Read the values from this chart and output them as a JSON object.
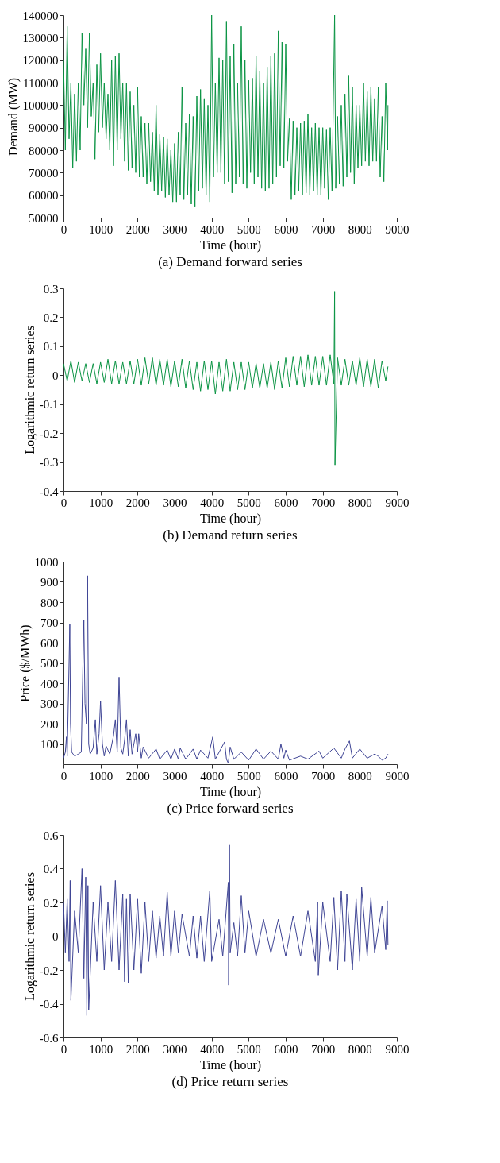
{
  "chart_data": [
    {
      "type": "line",
      "title": "(a) Demand forward series",
      "xlabel": "Time (hour)",
      "ylabel": "Demand (MW)",
      "xlim": [
        0,
        9000
      ],
      "xticks": [
        0,
        1000,
        2000,
        3000,
        4000,
        5000,
        6000,
        7000,
        8000,
        9000
      ],
      "ylim": [
        50000,
        140000
      ],
      "yticks": [
        50000,
        60000,
        70000,
        80000,
        90000,
        100000,
        110000,
        120000,
        130000,
        140000
      ],
      "grid": false,
      "x": [
        0,
        50,
        100,
        150,
        200,
        250,
        300,
        350,
        400,
        450,
        500,
        550,
        600,
        650,
        700,
        750,
        800,
        850,
        900,
        950,
        1000,
        1050,
        1100,
        1150,
        1200,
        1250,
        1300,
        1350,
        1400,
        1450,
        1500,
        1550,
        1600,
        1650,
        1700,
        1750,
        1800,
        1850,
        1900,
        1950,
        2000,
        2050,
        2100,
        2150,
        2200,
        2250,
        2300,
        2350,
        2400,
        2450,
        2500,
        2550,
        2600,
        2650,
        2700,
        2750,
        2800,
        2850,
        2900,
        2950,
        3000,
        3050,
        3100,
        3150,
        3200,
        3250,
        3300,
        3350,
        3400,
        3450,
        3500,
        3550,
        3600,
        3650,
        3700,
        3750,
        3800,
        3850,
        3900,
        3950,
        4000,
        4050,
        4100,
        4150,
        4200,
        4250,
        4300,
        4350,
        4400,
        4450,
        4500,
        4550,
        4600,
        4650,
        4700,
        4750,
        4800,
        4850,
        4900,
        4950,
        5000,
        5050,
        5100,
        5150,
        5200,
        5250,
        5300,
        5350,
        5400,
        5450,
        5500,
        5550,
        5600,
        5650,
        5700,
        5750,
        5800,
        5850,
        5900,
        5950,
        6000,
        6050,
        6100,
        6150,
        6200,
        6250,
        6300,
        6350,
        6400,
        6450,
        6500,
        6550,
        6600,
        6650,
        6700,
        6750,
        6800,
        6850,
        6900,
        6950,
        7000,
        7050,
        7100,
        7150,
        7200,
        7250,
        7320,
        7350,
        7400,
        7450,
        7500,
        7550,
        7600,
        7650,
        7700,
        7750,
        7800,
        7850,
        7900,
        7950,
        8000,
        8050,
        8100,
        8150,
        8200,
        8250,
        8300,
        8350,
        8400,
        8450,
        8500,
        8550,
        8600,
        8650,
        8700,
        8750,
        8760
      ],
      "series": [
        {
          "color": "#0b9444",
          "values": [
            120000,
            80000,
            135000,
            85000,
            110000,
            72000,
            105000,
            75000,
            110000,
            80000,
            132000,
            100000,
            125000,
            90000,
            132000,
            95000,
            110000,
            76000,
            118000,
            88000,
            123000,
            90000,
            110000,
            85000,
            105000,
            80000,
            120000,
            73000,
            122000,
            80000,
            123000,
            85000,
            110000,
            75000,
            110000,
            71000,
            106000,
            72000,
            100000,
            70000,
            108000,
            68000,
            95000,
            68000,
            92000,
            65000,
            92000,
            66000,
            88000,
            62000,
            100000,
            60000,
            87000,
            62000,
            86000,
            59000,
            85000,
            60000,
            80000,
            57000,
            83000,
            57000,
            88000,
            60000,
            108000,
            58000,
            92000,
            60000,
            96000,
            56000,
            95000,
            55000,
            104000,
            62000,
            107000,
            63000,
            103000,
            60000,
            100000,
            57000,
            140000,
            68000,
            110000,
            70000,
            121000,
            70000,
            120000,
            65000,
            137000,
            66000,
            122000,
            61000,
            127000,
            65000,
            110000,
            68000,
            135000,
            65000,
            120000,
            63000,
            111000,
            70000,
            112000,
            65000,
            122000,
            68000,
            115000,
            63000,
            110000,
            62000,
            117000,
            63000,
            122000,
            65000,
            123000,
            68000,
            133000,
            73000,
            128000,
            72000,
            127000,
            75000,
            94000,
            58000,
            93000,
            60000,
            90000,
            62000,
            92000,
            60000,
            93000,
            61000,
            96000,
            60000,
            90000,
            62000,
            92000,
            60000,
            90000,
            60000,
            90000,
            63000,
            89000,
            58000,
            90000,
            62000,
            140000,
            63000,
            95000,
            65000,
            100000,
            64000,
            105000,
            68000,
            113000,
            70000,
            108000,
            65000,
            100000,
            72000,
            100000,
            73000,
            110000,
            75000,
            106000,
            73000,
            108000,
            75000,
            103000,
            75000,
            108000,
            68000,
            95000,
            66000,
            110000,
            80000,
            100000
          ]
        }
      ]
    },
    {
      "type": "line",
      "title": "(b) Demand return series",
      "xlabel": "Time (hour)",
      "ylabel": "Logarithmic return series",
      "xlim": [
        0,
        9000
      ],
      "xticks": [
        0,
        1000,
        2000,
        3000,
        4000,
        5000,
        6000,
        7000,
        8000,
        9000
      ],
      "ylim": [
        -0.4,
        0.3
      ],
      "yticks": [
        -0.4,
        -0.3,
        -0.2,
        -0.1,
        0,
        0.1,
        0.2,
        0.3
      ],
      "grid": false,
      "x": [
        0,
        100,
        200,
        300,
        400,
        500,
        600,
        700,
        800,
        900,
        1000,
        1100,
        1200,
        1300,
        1400,
        1500,
        1600,
        1700,
        1800,
        1900,
        2000,
        2100,
        2200,
        2300,
        2400,
        2500,
        2600,
        2700,
        2800,
        2900,
        3000,
        3100,
        3200,
        3300,
        3400,
        3500,
        3600,
        3700,
        3800,
        3900,
        4000,
        4100,
        4200,
        4300,
        4400,
        4500,
        4600,
        4700,
        4800,
        4900,
        5000,
        5100,
        5200,
        5300,
        5400,
        5500,
        5600,
        5700,
        5800,
        5900,
        6000,
        6100,
        6200,
        6300,
        6400,
        6500,
        6600,
        6700,
        6800,
        6900,
        7000,
        7100,
        7200,
        7300,
        7320,
        7330,
        7400,
        7500,
        7600,
        7700,
        7800,
        7900,
        8000,
        8100,
        8200,
        8300,
        8400,
        8500,
        8600,
        8700,
        8760
      ],
      "series": [
        {
          "color": "#0b9444",
          "values": [
            0.04,
            -0.02,
            0.05,
            -0.025,
            0.045,
            -0.02,
            0.04,
            -0.025,
            0.04,
            -0.03,
            0.045,
            -0.025,
            0.055,
            -0.03,
            0.05,
            -0.03,
            0.045,
            -0.03,
            0.05,
            -0.03,
            0.055,
            -0.035,
            0.06,
            -0.03,
            0.06,
            -0.035,
            0.055,
            -0.035,
            0.055,
            -0.04,
            0.05,
            -0.04,
            0.055,
            -0.045,
            0.05,
            -0.05,
            0.045,
            -0.055,
            0.05,
            -0.05,
            0.05,
            -0.065,
            0.045,
            -0.055,
            0.055,
            -0.055,
            0.045,
            -0.05,
            0.045,
            -0.05,
            0.045,
            -0.045,
            0.04,
            -0.045,
            0.04,
            -0.045,
            0.045,
            -0.05,
            0.05,
            -0.045,
            0.06,
            -0.04,
            0.065,
            -0.035,
            0.065,
            -0.04,
            0.07,
            -0.035,
            0.065,
            -0.035,
            0.065,
            -0.035,
            0.07,
            -0.03,
            0.29,
            -0.31,
            0.06,
            -0.035,
            0.055,
            -0.035,
            0.05,
            -0.035,
            0.06,
            -0.04,
            0.055,
            -0.04,
            0.055,
            -0.045,
            0.05,
            -0.02,
            0.03
          ]
        }
      ]
    },
    {
      "type": "line",
      "title": "(c) Price forward series",
      "xlabel": "Time (hour)",
      "ylabel": "Price ($/MWh)",
      "xlim": [
        0,
        9000
      ],
      "xticks": [
        0,
        1000,
        2000,
        3000,
        4000,
        5000,
        6000,
        7000,
        8000,
        9000
      ],
      "ylim": [
        0,
        1000
      ],
      "yticks": [
        100,
        200,
        300,
        400,
        500,
        600,
        700,
        800,
        900,
        1000
      ],
      "grid": false,
      "x": [
        0,
        50,
        80,
        100,
        150,
        170,
        190,
        220,
        300,
        400,
        480,
        520,
        550,
        580,
        620,
        650,
        680,
        720,
        800,
        860,
        900,
        960,
        1000,
        1050,
        1100,
        1150,
        1250,
        1350,
        1400,
        1450,
        1500,
        1550,
        1600,
        1650,
        1700,
        1750,
        1800,
        1850,
        1950,
        2000,
        2030,
        2100,
        2150,
        2300,
        2500,
        2600,
        2800,
        2900,
        3000,
        3100,
        3150,
        3300,
        3500,
        3600,
        3700,
        3900,
        4030,
        4100,
        4350,
        4400,
        4450,
        4500,
        4600,
        4800,
        5000,
        5200,
        5400,
        5600,
        5800,
        5870,
        5950,
        6000,
        6100,
        6400,
        6600,
        6900,
        7000,
        7300,
        7500,
        7600,
        7720,
        7800,
        8000,
        8200,
        8400,
        8500,
        8600,
        8700,
        8760
      ],
      "series": [
        {
          "color": "#3f4595",
          "values": [
            30,
            60,
            135,
            40,
            500,
            690,
            200,
            60,
            40,
            50,
            60,
            450,
            710,
            300,
            200,
            930,
            100,
            50,
            80,
            220,
            50,
            150,
            310,
            100,
            40,
            90,
            50,
            140,
            220,
            60,
            430,
            80,
            50,
            120,
            220,
            40,
            170,
            50,
            150,
            60,
            150,
            30,
            85,
            30,
            75,
            25,
            70,
            25,
            75,
            25,
            80,
            25,
            75,
            25,
            70,
            30,
            135,
            25,
            110,
            25,
            5,
            85,
            25,
            60,
            20,
            75,
            25,
            65,
            25,
            100,
            30,
            70,
            20,
            40,
            25,
            65,
            30,
            80,
            30,
            75,
            115,
            30,
            75,
            30,
            50,
            40,
            20,
            30,
            50
          ]
        }
      ]
    },
    {
      "type": "line",
      "title": "(d) Price return series",
      "xlabel": "Time (hour)",
      "ylabel": "Logarithmic return series",
      "xlim": [
        0,
        9000
      ],
      "xticks": [
        0,
        1000,
        2000,
        3000,
        4000,
        5000,
        6000,
        7000,
        8000,
        9000
      ],
      "ylim": [
        -0.6,
        0.6
      ],
      "yticks": [
        -0.6,
        -0.4,
        -0.2,
        0,
        0.2,
        0.4,
        0.6
      ],
      "grid": false,
      "x": [
        0,
        50,
        100,
        150,
        180,
        200,
        300,
        400,
        500,
        550,
        600,
        630,
        660,
        680,
        800,
        900,
        1000,
        1100,
        1200,
        1300,
        1400,
        1500,
        1600,
        1650,
        1700,
        1750,
        1800,
        1900,
        2000,
        2100,
        2200,
        2300,
        2400,
        2500,
        2600,
        2700,
        2800,
        2900,
        3000,
        3100,
        3200,
        3400,
        3500,
        3600,
        3700,
        3800,
        3950,
        4000,
        4200,
        4300,
        4450,
        4460,
        4480,
        4500,
        4600,
        4700,
        4800,
        4900,
        5000,
        5200,
        5400,
        5600,
        5800,
        6000,
        6200,
        6400,
        6600,
        6800,
        6860,
        6880,
        7000,
        7200,
        7300,
        7400,
        7500,
        7600,
        7650,
        7800,
        7900,
        8000,
        8050,
        8200,
        8300,
        8400,
        8600,
        8700,
        8740,
        8760
      ],
      "series": [
        {
          "color": "#3f4595",
          "values": [
            0.2,
            -0.1,
            0.22,
            -0.15,
            0.33,
            -0.38,
            0.15,
            -0.1,
            0.4,
            -0.25,
            0.35,
            -0.47,
            0.3,
            -0.44,
            0.2,
            -0.15,
            0.3,
            -0.2,
            0.2,
            -0.15,
            0.33,
            -0.2,
            0.25,
            -0.27,
            0.22,
            -0.28,
            0.25,
            -0.2,
            0.22,
            -0.22,
            0.2,
            -0.15,
            0.15,
            -0.13,
            0.12,
            -0.12,
            0.26,
            -0.12,
            0.15,
            -0.1,
            0.13,
            -0.12,
            0.12,
            -0.13,
            0.12,
            -0.15,
            0.27,
            -0.15,
            0.1,
            -0.12,
            0.32,
            -0.29,
            0.54,
            -0.1,
            0.08,
            -0.12,
            0.24,
            -0.1,
            0.15,
            -0.12,
            0.1,
            -0.1,
            0.1,
            -0.12,
            0.12,
            -0.12,
            0.15,
            -0.15,
            0.2,
            -0.23,
            0.2,
            -0.15,
            0.23,
            -0.2,
            0.27,
            -0.15,
            0.25,
            -0.2,
            0.22,
            -0.15,
            0.29,
            -0.12,
            0.23,
            -0.1,
            0.18,
            -0.08,
            0.21,
            -0.05
          ]
        }
      ]
    }
  ]
}
